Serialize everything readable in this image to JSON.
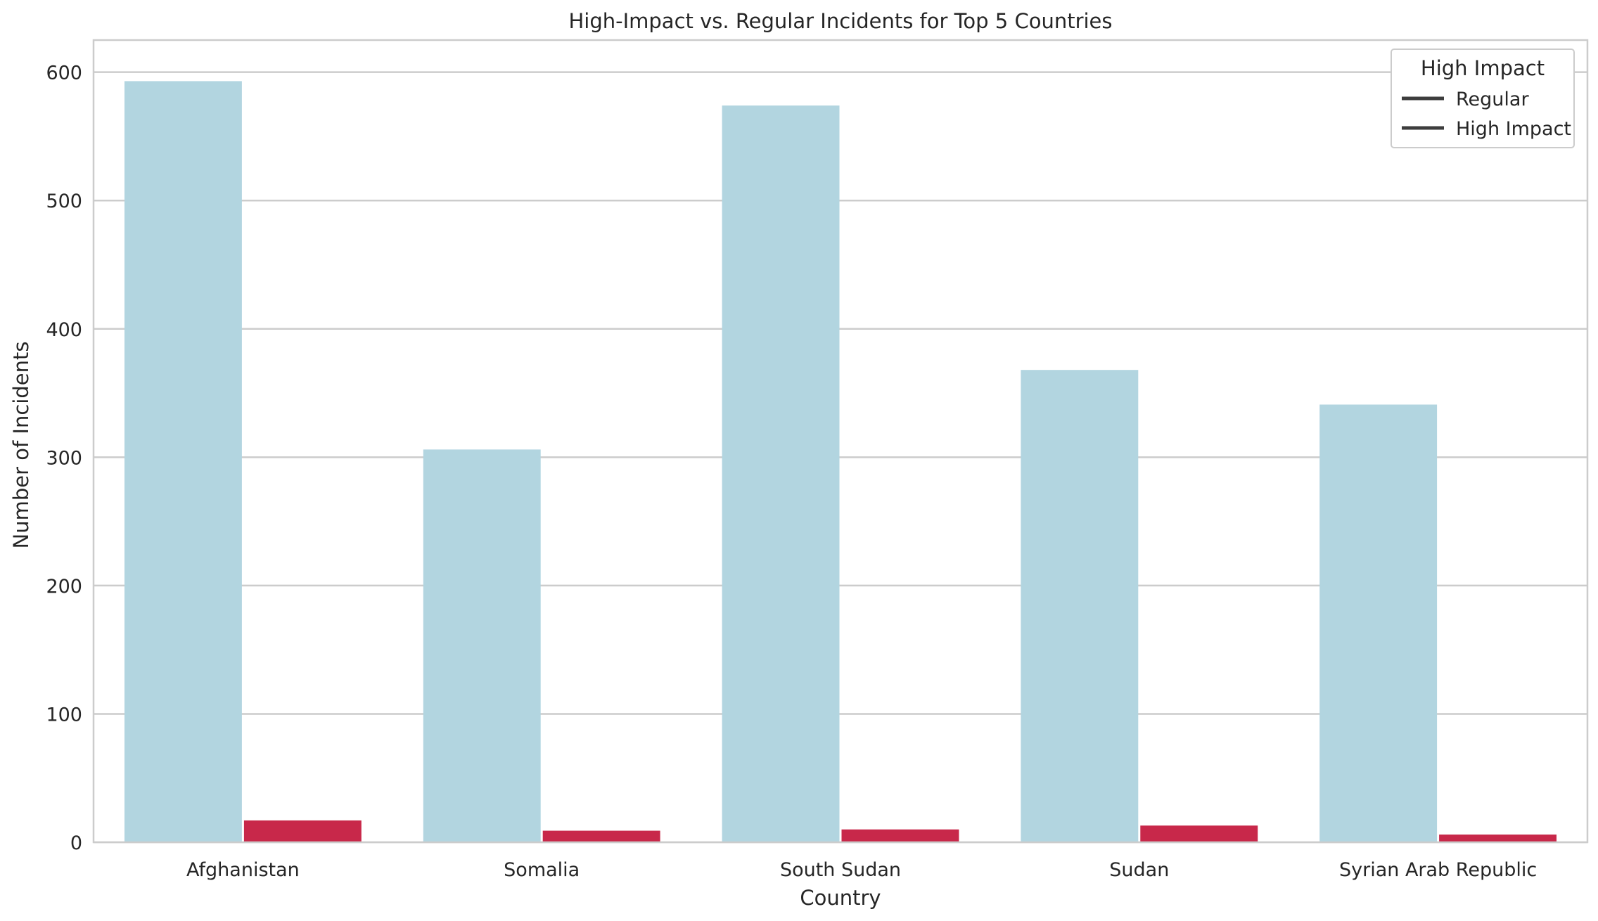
{
  "chart_data": {
    "type": "bar",
    "title": "High-Impact vs. Regular Incidents for Top 5 Countries",
    "xlabel": "Country",
    "ylabel": "Number of Incidents",
    "categories": [
      "Afghanistan",
      "Somalia",
      "South Sudan",
      "Sudan",
      "Syrian Arab Republic"
    ],
    "series": [
      {
        "name": "Regular",
        "values": [
          593,
          306,
          574,
          368,
          341
        ],
        "color": "#b2d5e0"
      },
      {
        "name": "High Impact",
        "values": [
          17,
          9,
          10,
          13,
          6
        ],
        "color": "#c8284a"
      }
    ],
    "ylim": [
      0,
      625
    ],
    "yticks": [
      0,
      100,
      200,
      300,
      400,
      500,
      600
    ],
    "grid": true,
    "legend": {
      "title": "High Impact",
      "placement": "top-right",
      "entries": [
        "Regular",
        "High Impact"
      ]
    }
  }
}
